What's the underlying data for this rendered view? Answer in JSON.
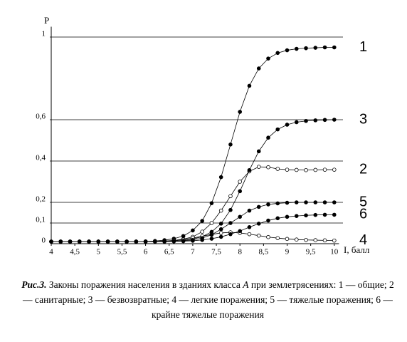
{
  "chart_data": {
    "type": "line",
    "y_label": "P",
    "x_label": "I, балл",
    "caption_label": "Рис.3.",
    "caption_parts": [
      " Законы поражения населения в зданиях класса ",
      "А",
      " при землетрясениях: 1 — общие; 2 — санитарные; 3 — безвозвратные; 4 — легкие поражения; 5 — тяжелые поражения; 6 — крайне тяжелые поражения"
    ],
    "x": [
      4,
      4.2,
      4.4,
      4.6,
      4.8,
      5,
      5.2,
      5.4,
      5.6,
      5.8,
      6,
      6.2,
      6.4,
      6.6,
      6.8,
      7,
      7.2,
      7.4,
      7.6,
      7.8,
      8,
      8.2,
      8.4,
      8.6,
      8.8,
      9,
      9.2,
      9.4,
      9.6,
      9.8,
      10
    ],
    "series": [
      {
        "name": "1",
        "color": "#000000",
        "filled": true,
        "values": [
          0.01,
          0.01,
          0.01,
          0.01,
          0.01,
          0.01,
          0.01,
          0.01,
          0.01,
          0.01,
          0.011,
          0.013,
          0.017,
          0.024,
          0.037,
          0.064,
          0.11,
          0.196,
          0.322,
          0.48,
          0.638,
          0.764,
          0.848,
          0.896,
          0.923,
          0.936,
          0.943,
          0.946,
          0.948,
          0.95,
          0.95
        ]
      },
      {
        "name": "2",
        "color": "#000000",
        "filled": false,
        "values": [
          0.01,
          0.01,
          0.01,
          0.01,
          0.01,
          0.01,
          0.01,
          0.01,
          0.01,
          0.01,
          0.01,
          0.011,
          0.013,
          0.016,
          0.022,
          0.033,
          0.058,
          0.1,
          0.16,
          0.23,
          0.3,
          0.35,
          0.372,
          0.37,
          0.362,
          0.358,
          0.357,
          0.356,
          0.357,
          0.358,
          0.358
        ]
      },
      {
        "name": "3",
        "color": "#000000",
        "filled": true,
        "values": [
          0.01,
          0.01,
          0.01,
          0.01,
          0.01,
          0.01,
          0.01,
          0.01,
          0.01,
          0.01,
          0.01,
          0.011,
          0.012,
          0.013,
          0.016,
          0.022,
          0.034,
          0.057,
          0.097,
          0.163,
          0.254,
          0.356,
          0.447,
          0.513,
          0.553,
          0.576,
          0.588,
          0.594,
          0.597,
          0.599,
          0.6
        ]
      },
      {
        "name": "4",
        "color": "#000000",
        "filled": false,
        "values": [
          0.01,
          0.01,
          0.01,
          0.01,
          0.01,
          0.01,
          0.01,
          0.01,
          0.01,
          0.01,
          0.01,
          0.011,
          0.012,
          0.015,
          0.02,
          0.027,
          0.036,
          0.045,
          0.052,
          0.055,
          0.052,
          0.046,
          0.039,
          0.032,
          0.027,
          0.023,
          0.02,
          0.018,
          0.017,
          0.016,
          0.015
        ]
      },
      {
        "name": "5",
        "color": "#000000",
        "filled": true,
        "values": [
          0.01,
          0.01,
          0.01,
          0.01,
          0.01,
          0.01,
          0.01,
          0.01,
          0.01,
          0.01,
          0.01,
          0.01,
          0.011,
          0.012,
          0.014,
          0.018,
          0.027,
          0.043,
          0.07,
          0.1,
          0.13,
          0.16,
          0.178,
          0.19,
          0.195,
          0.198,
          0.2,
          0.2,
          0.2,
          0.2,
          0.2
        ]
      },
      {
        "name": "6",
        "color": "#000000",
        "filled": true,
        "values": [
          0.01,
          0.01,
          0.01,
          0.01,
          0.01,
          0.01,
          0.01,
          0.01,
          0.01,
          0.01,
          0.01,
          0.01,
          0.01,
          0.011,
          0.012,
          0.014,
          0.018,
          0.024,
          0.033,
          0.046,
          0.061,
          0.08,
          0.097,
          0.112,
          0.123,
          0.13,
          0.134,
          0.137,
          0.139,
          0.14,
          0.14
        ]
      }
    ],
    "xlim": [
      4,
      10.1
    ],
    "ylim": [
      0,
      1.05
    ],
    "xticks": [
      4,
      {
        "value": 4.5,
        "label": "4,5"
      },
      5,
      {
        "value": 5.5,
        "label": "5,5"
      },
      6,
      {
        "value": 6.5,
        "label": "6,5"
      },
      7,
      {
        "value": 7.5,
        "label": "7,5"
      },
      8,
      {
        "value": 8.5,
        "label": "8,5"
      },
      9,
      {
        "value": 9.5,
        "label": "9,5"
      },
      10
    ],
    "yticks": [
      0,
      {
        "value": 0.1,
        "label": "0,1"
      },
      {
        "value": 0.2,
        "label": "0,2"
      },
      {
        "value": 0.4,
        "label": "0,4"
      },
      {
        "value": 0.6,
        "label": "0,6"
      },
      1
    ],
    "grid": true
  }
}
